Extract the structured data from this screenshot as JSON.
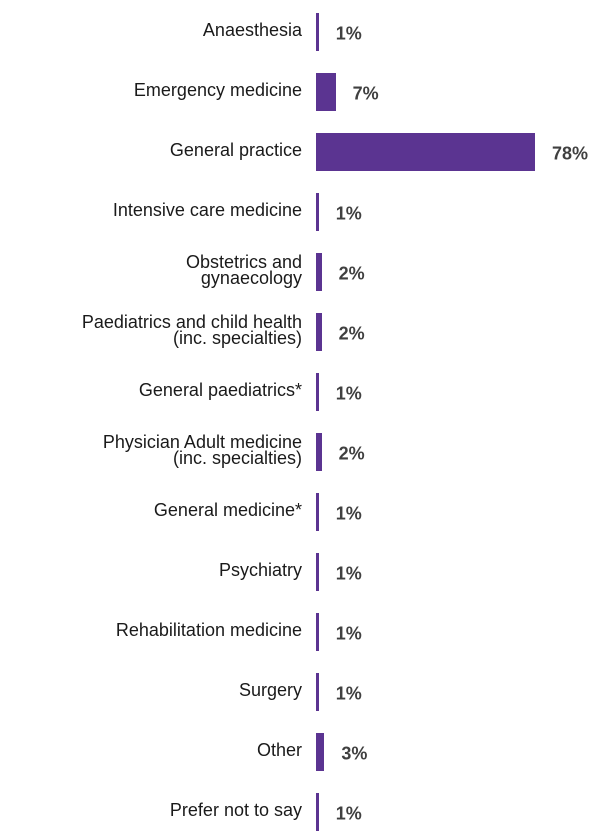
{
  "chart_data": {
    "type": "bar",
    "orientation": "horizontal",
    "color": "#5b3491",
    "categories": [
      "Anaesthesia",
      "Emergency medicine",
      "General practice",
      "Intensive care medicine",
      "Obstetrics and\ngynaecology",
      "Paediatrics and child health\n(inc. specialties)",
      "General paediatrics*",
      "Physician Adult medicine\n(inc. specialties)",
      "General medicine*",
      "Psychiatry",
      "Rehabilitation medicine",
      "Surgery",
      "Other",
      "Prefer not to say"
    ],
    "values": [
      1,
      7,
      78,
      1,
      2,
      2,
      1,
      2,
      1,
      1,
      1,
      1,
      3,
      1
    ],
    "value_labels": [
      "1%",
      "7%",
      "78%",
      "1%",
      "2%",
      "2%",
      "1%",
      "2%",
      "1%",
      "1%",
      "1%",
      "1%",
      "3%",
      "1%"
    ]
  }
}
